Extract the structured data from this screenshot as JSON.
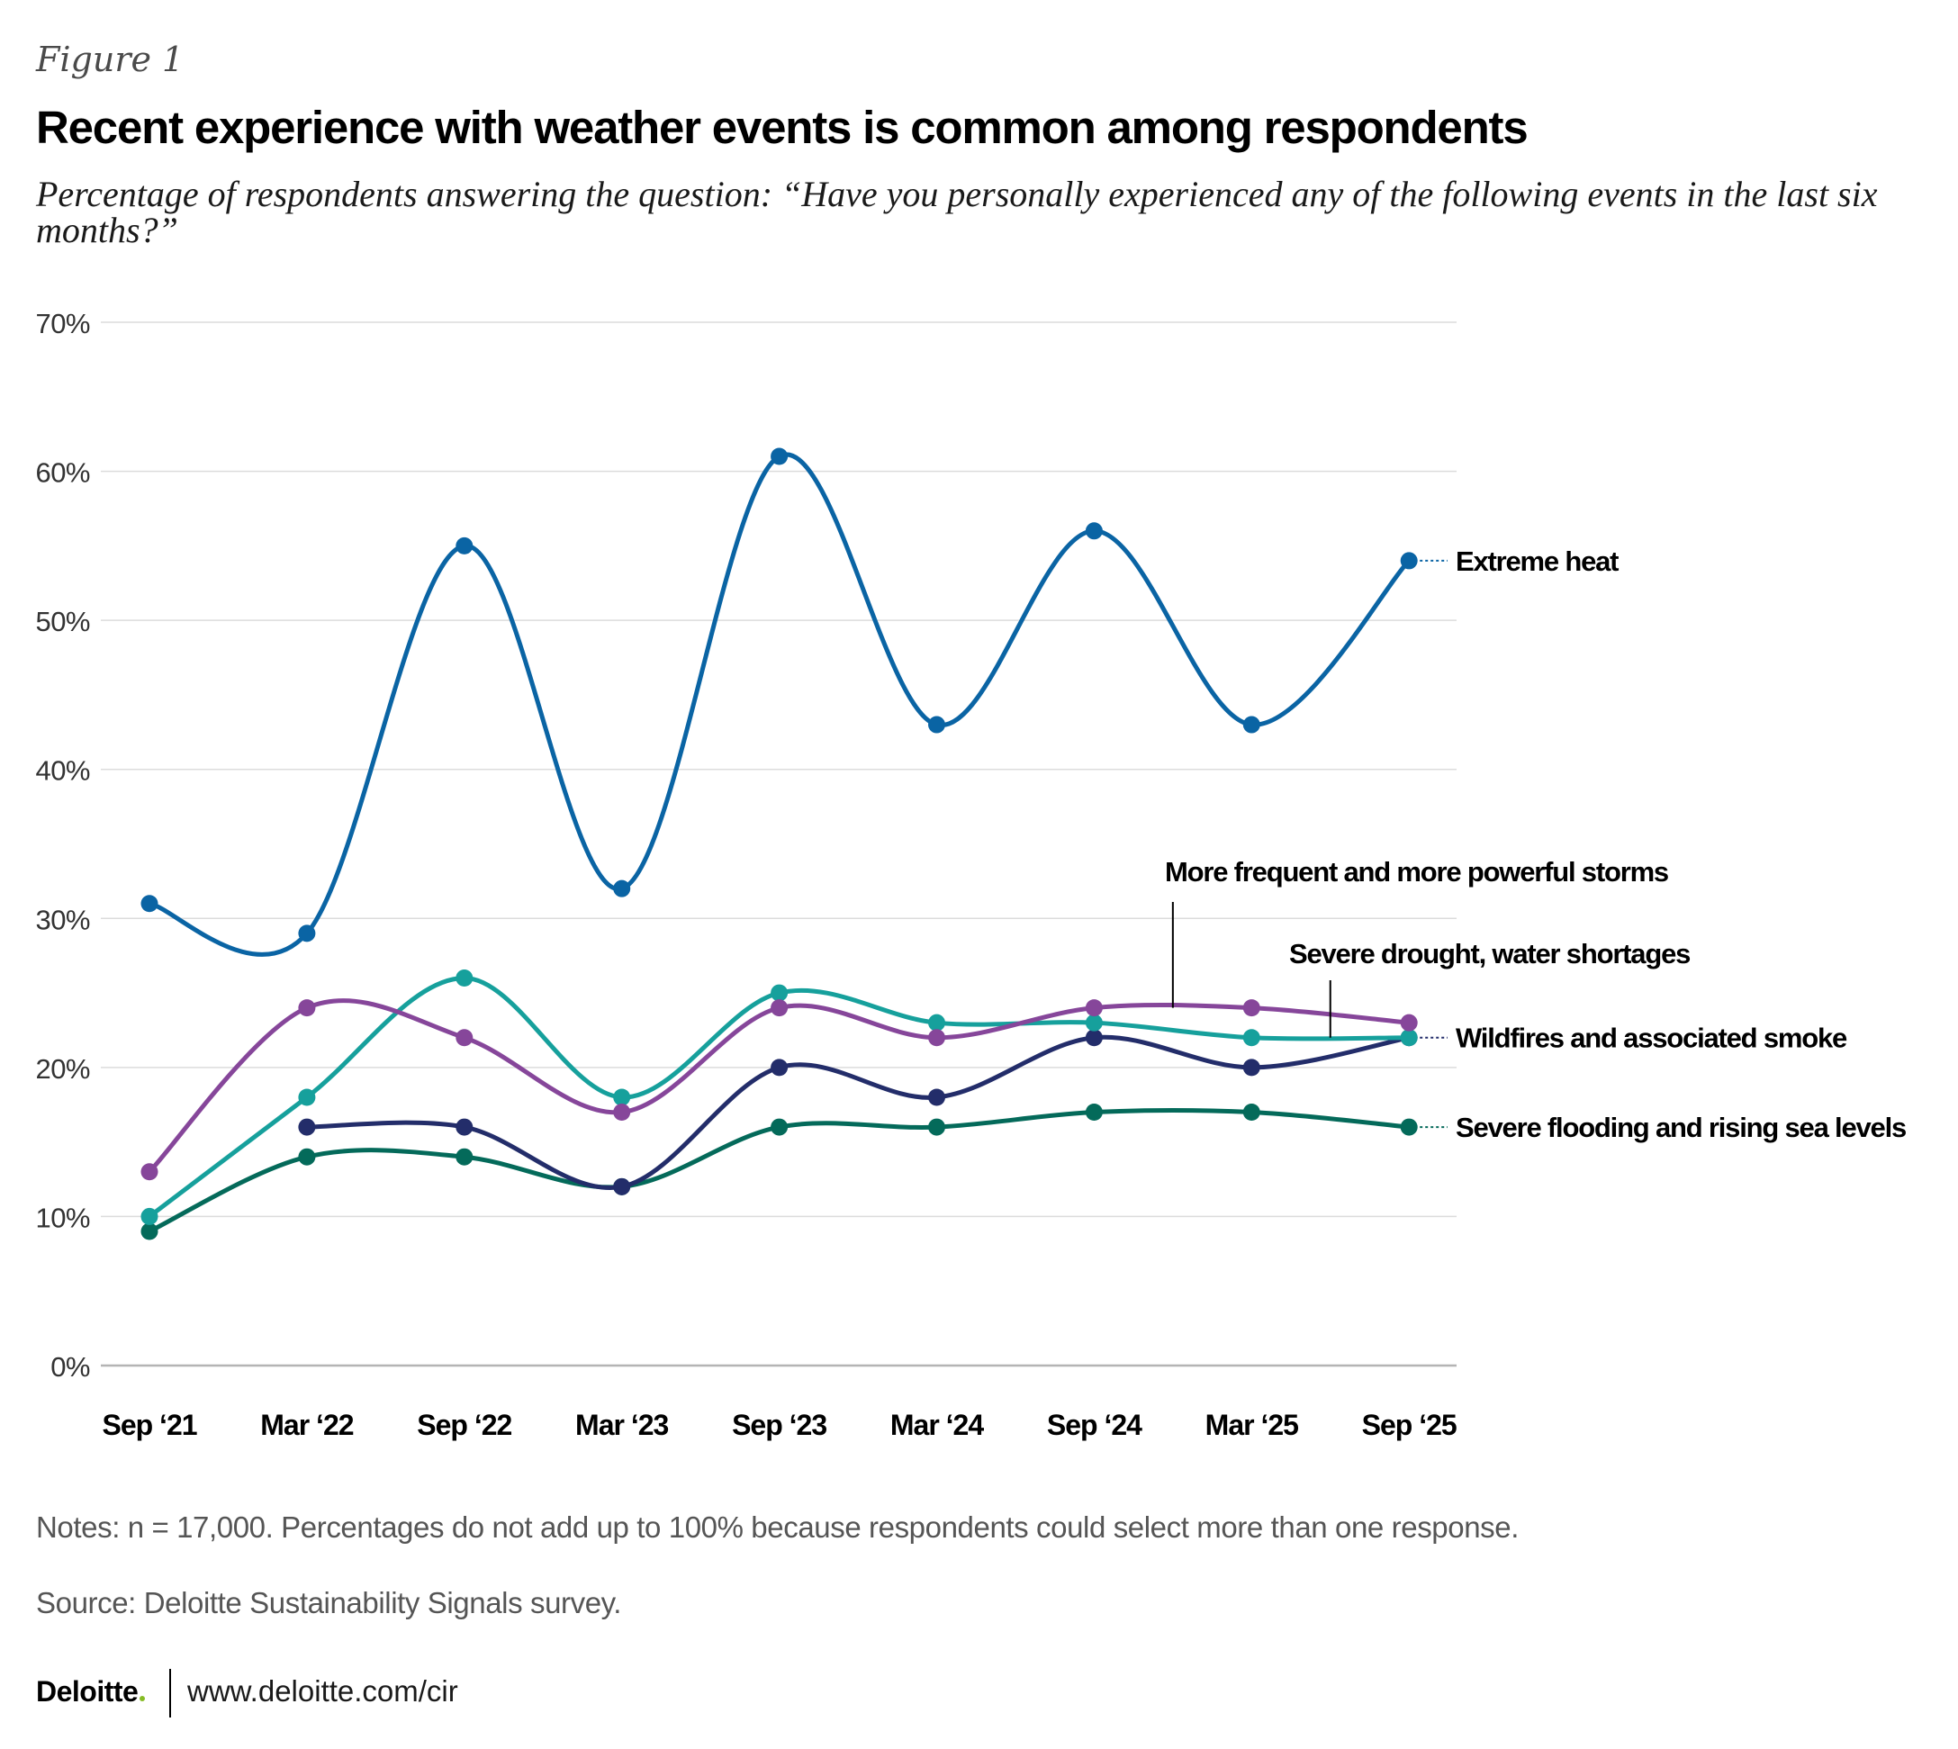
{
  "figure_label": "Figure 1",
  "title": "Recent experience with weather events is common among respondents",
  "subtitle": "Percentage of respondents answering the question: “Have you personally experienced any of the following events in the last six months?”",
  "notes": "Notes: n = 17,000. Percentages do not add up to 100% because respondents could select more than one response.",
  "source": "Source: Deloitte Sustainability Signals survey.",
  "footer": {
    "logo": "Deloitte",
    "url": "www.deloitte.com/cir"
  },
  "colors": {
    "extreme_heat": "#0a64a4",
    "storms": "#86469a",
    "drought": "#16a09c",
    "wildfires": "#232d6a",
    "flooding": "#046a5a",
    "grid": "#dcdcdc",
    "axis": "#b4b4b4"
  },
  "chart_data": {
    "type": "line",
    "categories": [
      "Sep ‘21",
      "Mar ‘22",
      "Sep ‘22",
      "Mar ‘23",
      "Sep ‘23",
      "Mar ‘24",
      "Sep ‘24",
      "Mar ‘25",
      "Sep ‘25"
    ],
    "ylim": [
      0,
      70
    ],
    "yticks": [
      0,
      10,
      20,
      30,
      40,
      50,
      60,
      70
    ],
    "ytick_labels": [
      "0%",
      "10%",
      "20%",
      "30%",
      "40%",
      "50%",
      "60%",
      "70%"
    ],
    "xlabel": "",
    "ylabel": "",
    "grid": true,
    "series": [
      {
        "name": "Extreme heat",
        "key": "extreme_heat",
        "values": [
          31,
          29,
          55,
          32,
          61,
          43,
          56,
          43,
          54
        ]
      },
      {
        "name": "More frequent and more powerful storms",
        "key": "storms",
        "values": [
          13,
          24,
          22,
          17,
          24,
          22,
          24,
          24,
          23
        ]
      },
      {
        "name": "Severe drought, water shortages",
        "key": "drought",
        "values": [
          10,
          18,
          26,
          18,
          25,
          23,
          23,
          22,
          22
        ]
      },
      {
        "name": "Wildfires and associated smoke",
        "key": "wildfires",
        "values": [
          null,
          16,
          16,
          12,
          20,
          18,
          22,
          20,
          22
        ]
      },
      {
        "name": "Severe flooding and rising sea levels",
        "key": "flooding",
        "values": [
          9,
          14,
          14,
          12,
          16,
          16,
          17,
          17,
          16
        ]
      }
    ]
  }
}
